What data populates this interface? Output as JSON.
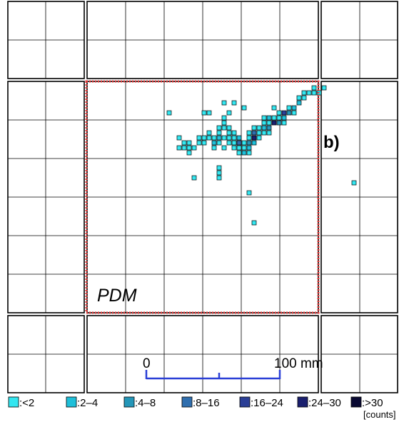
{
  "panel": {
    "label": "b)",
    "region_label": "PDM"
  },
  "scalebar": {
    "start_label": "0",
    "end_label": "100 mm",
    "color": "#2a3fd6"
  },
  "legend": {
    "unit": "[counts]",
    "items": [
      {
        "label": ":<2",
        "color": "#33e6f0"
      },
      {
        "label": ":2–4",
        "color": "#1ebfd9"
      },
      {
        "label": ":4–8",
        "color": "#2496b8"
      },
      {
        "label": ":8–16",
        "color": "#2f6eae"
      },
      {
        "label": ":16–24",
        "color": "#2b3f96"
      },
      {
        "label": ":24–30",
        "color": "#1a1f6e"
      },
      {
        "label": ":>30",
        "color": "#0a0a33"
      }
    ]
  },
  "pdm_border_color": "#e03a3a",
  "chart_data": {
    "type": "heatmap",
    "title": "",
    "xlabel": "",
    "ylabel": "",
    "unit": "counts",
    "bins": [
      "<2",
      "2–4",
      "4–8",
      "8–16",
      "16–24",
      "24–30",
      ">30"
    ],
    "cells": [
      [
        13,
        2,
        0
      ],
      [
        14,
        2,
        0
      ],
      [
        14,
        1,
        0
      ],
      [
        15,
        1,
        0
      ],
      [
        13,
        3,
        1
      ],
      [
        12,
        5,
        0
      ],
      [
        12,
        4,
        1
      ],
      [
        11,
        4,
        0
      ],
      [
        11,
        5,
        2
      ],
      [
        10,
        5,
        4
      ],
      [
        10,
        6,
        1
      ],
      [
        9,
        6,
        0
      ],
      [
        9,
        5,
        0
      ],
      [
        10,
        7,
        0
      ],
      [
        8,
        6,
        0
      ],
      [
        9,
        7,
        2
      ],
      [
        8,
        7,
        5
      ],
      [
        7,
        6,
        1
      ],
      [
        7,
        7,
        0
      ],
      [
        6,
        6,
        0
      ],
      [
        6,
        8,
        1
      ],
      [
        7,
        8,
        2
      ],
      [
        6,
        7,
        0
      ],
      [
        5,
        8,
        0
      ],
      [
        5,
        10,
        0
      ],
      [
        4,
        9,
        3
      ],
      [
        4,
        10,
        5
      ],
      [
        4,
        11,
        1
      ],
      [
        3,
        10,
        0
      ],
      [
        3,
        11,
        2
      ],
      [
        3,
        12,
        1
      ],
      [
        2,
        11,
        0
      ],
      [
        2,
        12,
        0
      ],
      [
        1,
        12,
        0
      ],
      [
        0,
        11,
        0
      ],
      [
        0,
        10,
        0
      ],
      [
        1,
        10,
        1
      ],
      [
        1,
        11,
        0
      ],
      [
        0,
        12,
        0
      ],
      [
        1,
        13,
        0
      ],
      [
        2,
        13,
        1
      ],
      [
        3,
        13,
        0
      ],
      [
        0,
        9,
        0
      ],
      [
        -1,
        9,
        0
      ],
      [
        -2,
        10,
        0
      ],
      [
        -3,
        10,
        1
      ],
      [
        -4,
        10,
        0
      ],
      [
        -5,
        10,
        0
      ],
      [
        -3,
        11,
        0
      ],
      [
        -4,
        11,
        1
      ],
      [
        -6,
        11,
        0
      ],
      [
        -7,
        11,
        0
      ],
      [
        -8,
        12,
        0
      ],
      [
        -2,
        12,
        0
      ],
      [
        -4,
        12,
        0
      ],
      [
        -3,
        9,
        0
      ],
      [
        -5,
        9,
        0
      ],
      [
        -9,
        12,
        0
      ],
      [
        -9,
        13,
        0
      ],
      [
        -9,
        11,
        0
      ],
      [
        -10,
        12,
        0
      ],
      [
        -11,
        12,
        0
      ],
      [
        -11,
        10,
        0
      ],
      [
        -3,
        8,
        0
      ],
      [
        -2,
        8,
        0
      ],
      [
        -1,
        8,
        0
      ],
      [
        -2,
        7,
        0
      ],
      [
        -2,
        6,
        0
      ],
      [
        -5,
        5,
        0
      ],
      [
        -6,
        5,
        0
      ],
      [
        -1,
        5,
        0
      ],
      [
        0,
        3,
        0
      ],
      [
        2,
        4,
        0
      ],
      [
        -3,
        16,
        0
      ],
      [
        -3,
        17,
        0
      ],
      [
        -3,
        18,
        0
      ],
      [
        -8,
        18,
        0
      ],
      [
        -2,
        3,
        0
      ],
      [
        1,
        11,
        3
      ],
      [
        -1,
        11,
        0
      ],
      [
        16,
        1,
        0
      ],
      [
        16,
        0,
        0
      ],
      [
        17,
        1,
        0
      ],
      [
        18,
        0,
        0
      ],
      [
        -13,
        5,
        0
      ],
      [
        4,
        8,
        0
      ],
      [
        5,
        9,
        0
      ],
      [
        3,
        9,
        0
      ],
      [
        6,
        9,
        0
      ],
      [
        -6,
        10,
        0
      ],
      [
        -7,
        10,
        0
      ],
      [
        -10,
        11,
        0
      ],
      [
        -1,
        10,
        0
      ],
      [
        7,
        9,
        0
      ],
      [
        8,
        4,
        0
      ],
      [
        3,
        21,
        0
      ],
      [
        4,
        27,
        0
      ],
      [
        24,
        19,
        0
      ]
    ]
  }
}
